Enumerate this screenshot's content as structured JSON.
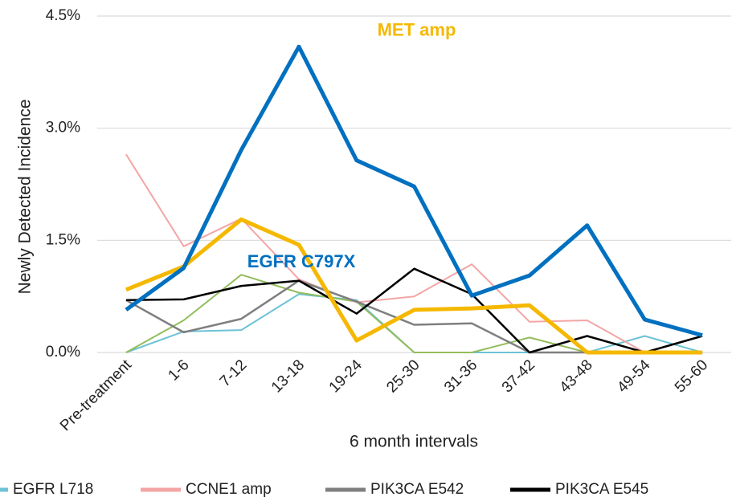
{
  "chart_data": {
    "type": "line",
    "y_label": "Newly Detected Incidence",
    "x_label": "6 month intervals",
    "categories": [
      "Pre-treatment",
      "1-6",
      "7-12",
      "13-18",
      "19-24",
      "25-30",
      "31-36",
      "37-42",
      "43-48",
      "49-54",
      "55-60"
    ],
    "ylim": [
      0,
      4.5
    ],
    "yticks": [
      {
        "value": 0,
        "label": "0.0%"
      },
      {
        "value": 1.5,
        "label": "1.5%"
      },
      {
        "value": 3,
        "label": "3.0%"
      },
      {
        "value": 4.5,
        "label": "4.5%"
      }
    ],
    "grid": true,
    "legend": "bottom",
    "series": [
      {
        "name": "EGFR L718",
        "color": "#6cc3d5",
        "width": 2,
        "in_legend": true,
        "values": [
          0,
          0.28,
          0.3,
          0.78,
          0.7,
          0,
          0,
          0,
          0,
          0.22,
          0
        ]
      },
      {
        "color": "#93bd5c",
        "width": 2,
        "in_legend": false,
        "values": [
          0,
          0.43,
          1.04,
          0.8,
          0.68,
          0,
          0,
          0.2,
          0,
          0,
          0
        ]
      },
      {
        "name": "CCNE1 amp",
        "color": "#f4a5a5",
        "width": 2,
        "in_legend": true,
        "values": [
          2.65,
          1.42,
          1.79,
          0.98,
          0.67,
          0.75,
          1.18,
          0.41,
          0.43,
          0,
          0
        ]
      },
      {
        "name": "PIK3CA E542",
        "color": "#7f7f7f",
        "width": 2.5,
        "in_legend": true,
        "values": [
          0.7,
          0.27,
          0.45,
          0.96,
          0.68,
          0.37,
          0.39,
          0,
          0,
          0,
          0
        ]
      },
      {
        "name": "PIK3CA E545",
        "color": "#000000",
        "width": 2.5,
        "in_legend": true,
        "values": [
          0.7,
          0.71,
          0.89,
          0.96,
          0.52,
          1.12,
          0.78,
          0,
          0.22,
          0,
          0.22
        ]
      },
      {
        "name": "MET amp",
        "color": "#f5b800",
        "width": 5,
        "in_legend": false,
        "values": [
          0.84,
          1.15,
          1.78,
          1.44,
          0.16,
          0.57,
          0.59,
          0.63,
          0,
          0,
          0
        ]
      },
      {
        "name": "EGFR C797X",
        "color": "#0070c0",
        "width": 5,
        "in_legend": false,
        "values": [
          0.57,
          1.13,
          2.71,
          4.09,
          2.57,
          2.22,
          0.76,
          1.03,
          1.7,
          0.44,
          0.23
        ]
      }
    ]
  }
}
